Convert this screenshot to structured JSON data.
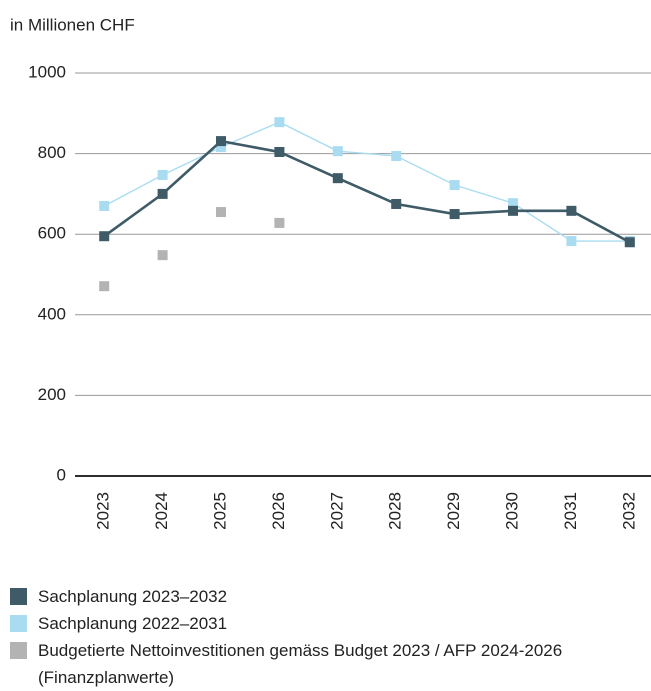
{
  "chart_data": {
    "type": "line",
    "y_axis_label": "in Millionen CHF",
    "categories": [
      "2023",
      "2024",
      "2025",
      "2026",
      "2027",
      "2028",
      "2029",
      "2030",
      "2031",
      "2032"
    ],
    "series": [
      {
        "name": "Sachplanung 2023–2032",
        "color": "#3e5b67",
        "line": true,
        "values": [
          595,
          700,
          831,
          804,
          739,
          675,
          650,
          658,
          658,
          580
        ]
      },
      {
        "name": "Sachplanung 2022–2031",
        "color": "#a9dcf0",
        "line": true,
        "values": [
          670,
          747,
          816,
          878,
          806,
          794,
          722,
          677,
          583,
          583
        ]
      },
      {
        "name": "Budgetierte Nettoinvestitionen gemäss Budget 2023 / AFP 2024-2026 (Finanzplanwerte)",
        "color": "#b3b3b3",
        "line": false,
        "values": [
          471,
          548,
          655,
          628,
          null,
          null,
          null,
          null,
          null,
          null
        ]
      }
    ],
    "ylim": [
      0,
      1000
    ],
    "yticks": [
      0,
      200,
      400,
      600,
      800,
      1000
    ],
    "grid": true
  }
}
